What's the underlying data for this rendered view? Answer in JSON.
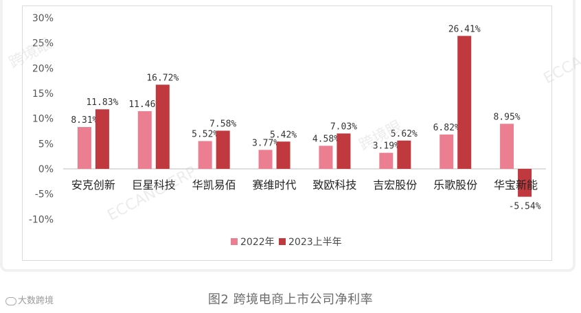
{
  "chart_data": {
    "type": "bar",
    "categories": [
      "安克创新",
      "巨星科技",
      "华凯易佰",
      "赛维时代",
      "致欧科技",
      "吉宏股份",
      "乐歌股份",
      "华宝新能"
    ],
    "series": [
      {
        "name": "2022年",
        "values": [
          8.31,
          11.46,
          5.52,
          3.77,
          4.58,
          3.19,
          6.82,
          8.95
        ],
        "labels": [
          "8.31%",
          "11.46%",
          "5.52%",
          "3.77%",
          "4.58%",
          "3.19%",
          "6.82%",
          "8.95%"
        ]
      },
      {
        "name": "2023上半年",
        "values": [
          11.83,
          16.72,
          7.58,
          5.42,
          7.03,
          5.62,
          26.41,
          -5.54
        ],
        "labels": [
          "11.83%",
          "16.72%",
          "7.58%",
          "5.42%",
          "7.03%",
          "5.62%",
          "26.41%",
          "-5.54%"
        ]
      }
    ],
    "yticks": [
      "30%",
      "25%",
      "20%",
      "15%",
      "10%",
      "5%",
      "0%",
      "-5%",
      "-10%"
    ],
    "ytick_values": [
      30,
      25,
      20,
      15,
      10,
      5,
      0,
      -5,
      -10
    ],
    "ylim": [
      -10,
      30
    ],
    "colors": [
      "#ec7e91",
      "#c0393f"
    ],
    "legend_position": "bottom-center",
    "grid": false
  },
  "caption": "图2  跨境电商上市公司净利率",
  "footer_brand": "大数跨境",
  "watermarks": [
    "跨境眼",
    "KUAJINGYAN.COM",
    "ECCANG ERP",
    "深圳市易仓科技有限公司",
    "ECCA"
  ]
}
